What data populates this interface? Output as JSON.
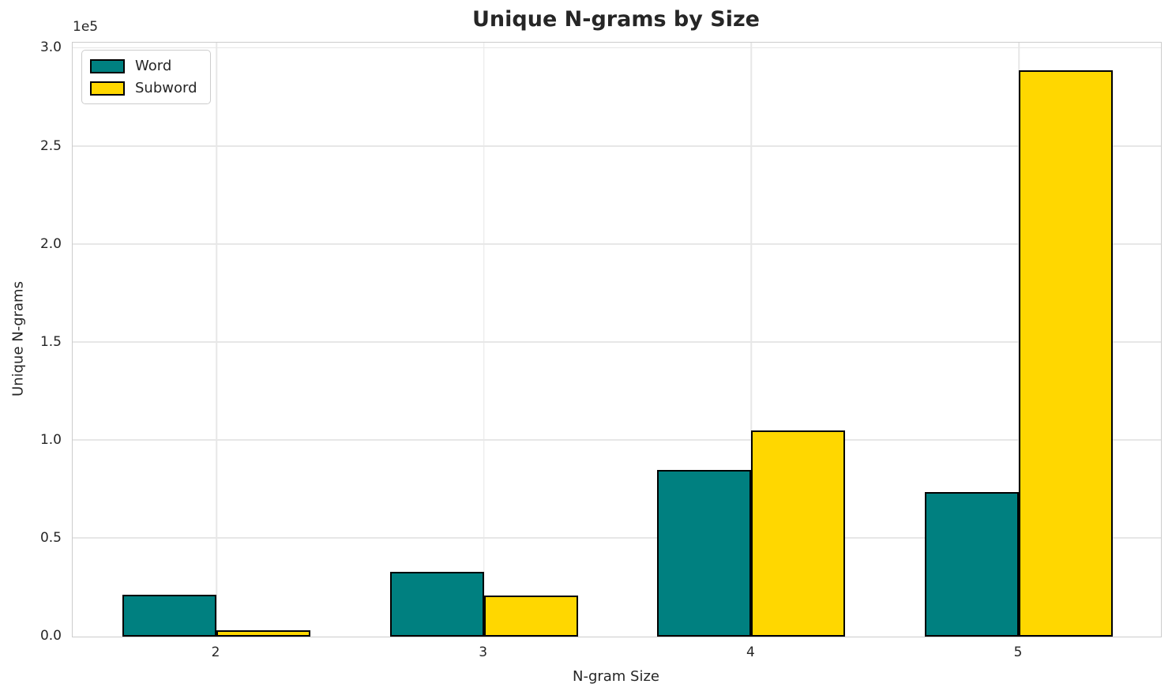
{
  "chart_data": {
    "type": "bar",
    "title": "Unique N-grams by Size",
    "xlabel": "N-gram Size",
    "ylabel": "Unique N-grams",
    "y_offset_text": "1e5",
    "categories": [
      "2",
      "3",
      "4",
      "5"
    ],
    "series": [
      {
        "name": "Word",
        "color": "#008080",
        "values": [
          21500,
          33000,
          85000,
          73700
        ]
      },
      {
        "name": "Subword",
        "color": "#FFD700",
        "values": [
          3400,
          20800,
          105000,
          289000
        ]
      }
    ],
    "bar_edge_color": "#000000",
    "y_ticks": {
      "values": [
        0,
        50000,
        100000,
        150000,
        200000,
        250000,
        300000
      ],
      "labels": [
        "0.0",
        "0.5",
        "1.0",
        "1.5",
        "2.0",
        "2.5",
        "3.0"
      ]
    },
    "ylim": [
      0,
      303000
    ],
    "grid": true,
    "grid_color": "#e7e7e7",
    "spine_color": "#cccccc",
    "text_color": "#262626",
    "background_color": "#ffffff",
    "legend": {
      "position": "upper-left"
    }
  }
}
